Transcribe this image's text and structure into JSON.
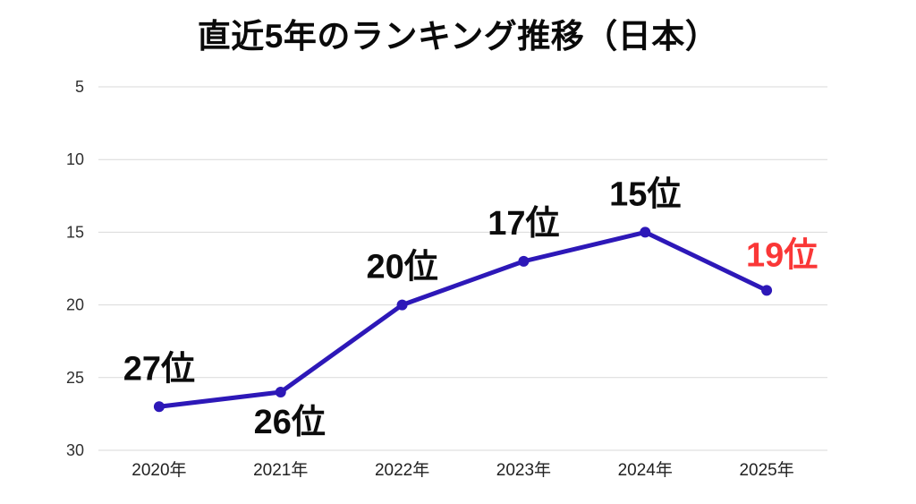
{
  "title": "直近5年のランキング推移（日本）",
  "colors": {
    "background": "#ffffff",
    "title_text": "#0a0a0a",
    "line": "#2d18b8",
    "marker": "#2d18b8",
    "grid": "#d9d9d9",
    "y_tick_text": "#303030",
    "x_tick_text": "#222222",
    "label_default": "#0c0c0c",
    "label_highlight": "#fa3737"
  },
  "chart_data": {
    "type": "line",
    "title": "直近5年のランキング推移（日本）",
    "xlabel": "",
    "ylabel": "",
    "categories": [
      "2020年",
      "2021年",
      "2022年",
      "2023年",
      "2024年",
      "2025年"
    ],
    "values": [
      27,
      26,
      20,
      17,
      15,
      19
    ],
    "point_labels": [
      {
        "text": "27位",
        "pos": "above",
        "highlight": false
      },
      {
        "text": "26位",
        "pos": "below",
        "highlight": false
      },
      {
        "text": "20位",
        "pos": "above",
        "highlight": false
      },
      {
        "text": "17位",
        "pos": "above",
        "highlight": false
      },
      {
        "text": "15位",
        "pos": "above",
        "highlight": false
      },
      {
        "text": "19位",
        "pos": "right-above",
        "highlight": true
      }
    ],
    "y_ticks": [
      5,
      10,
      15,
      20,
      25,
      30
    ],
    "ylim": [
      5,
      30
    ],
    "y_axis_inverted": true,
    "grid": true,
    "legend": false
  }
}
